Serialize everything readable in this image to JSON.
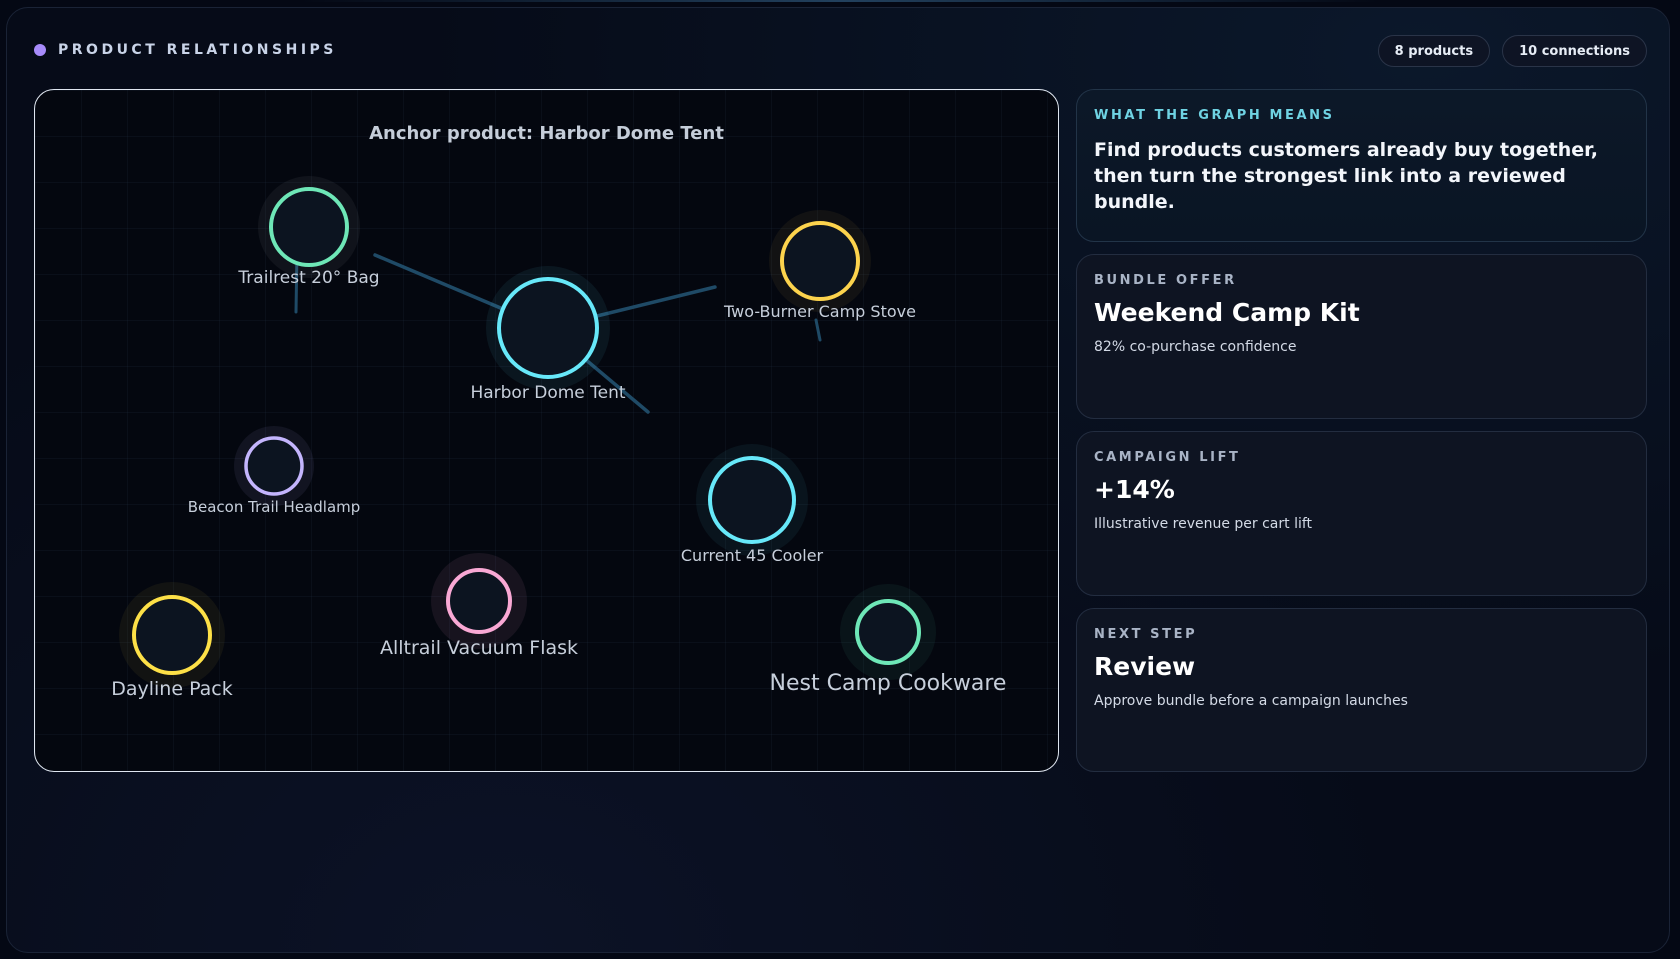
{
  "header": {
    "title": "PRODUCT RELATIONSHIPS",
    "dot_color": "#a78bfa",
    "products_pill": "8 products",
    "connections_pill": "10 connections"
  },
  "graph": {
    "anchor_title": "Anchor product: Harbor Dome Tent",
    "nodes": [
      {
        "id": "trailrest",
        "label": "Trailrest 20° Bag",
        "color": "#6ee7b7"
      },
      {
        "id": "harbor",
        "label": "Harbor Dome Tent",
        "color": "#67e8f9"
      },
      {
        "id": "stove",
        "label": "Two-Burner Camp Stove",
        "color": "#fcd34d"
      },
      {
        "id": "headlamp",
        "label": "Beacon Trail Headlamp",
        "color": "#c4b5fd"
      },
      {
        "id": "cooler",
        "label": "Current 45 Cooler",
        "color": "#67e8f9"
      },
      {
        "id": "flask",
        "label": "Alltrail Vacuum Flask",
        "color": "#f9a8d4"
      },
      {
        "id": "pack",
        "label": "Dayline Pack",
        "color": "#fde047"
      },
      {
        "id": "cookware",
        "label": "Nest Camp Cookware",
        "color": "#6ee7b7"
      }
    ],
    "edge_color": "#1f4a66"
  },
  "cards": [
    {
      "eyebrow": "WHAT THE GRAPH MEANS",
      "body": "Find products customers already buy together, then turn the strongest link into a reviewed bundle."
    },
    {
      "eyebrow": "BUNDLE OFFER",
      "headline": "Weekend Camp Kit",
      "sub": "82% co-purchase confidence"
    },
    {
      "eyebrow": "CAMPAIGN LIFT",
      "headline": "+14%",
      "sub": "Illustrative revenue per cart lift"
    },
    {
      "eyebrow": "NEXT STEP",
      "headline": "Review",
      "sub": "Approve bundle before a campaign launches"
    }
  ]
}
